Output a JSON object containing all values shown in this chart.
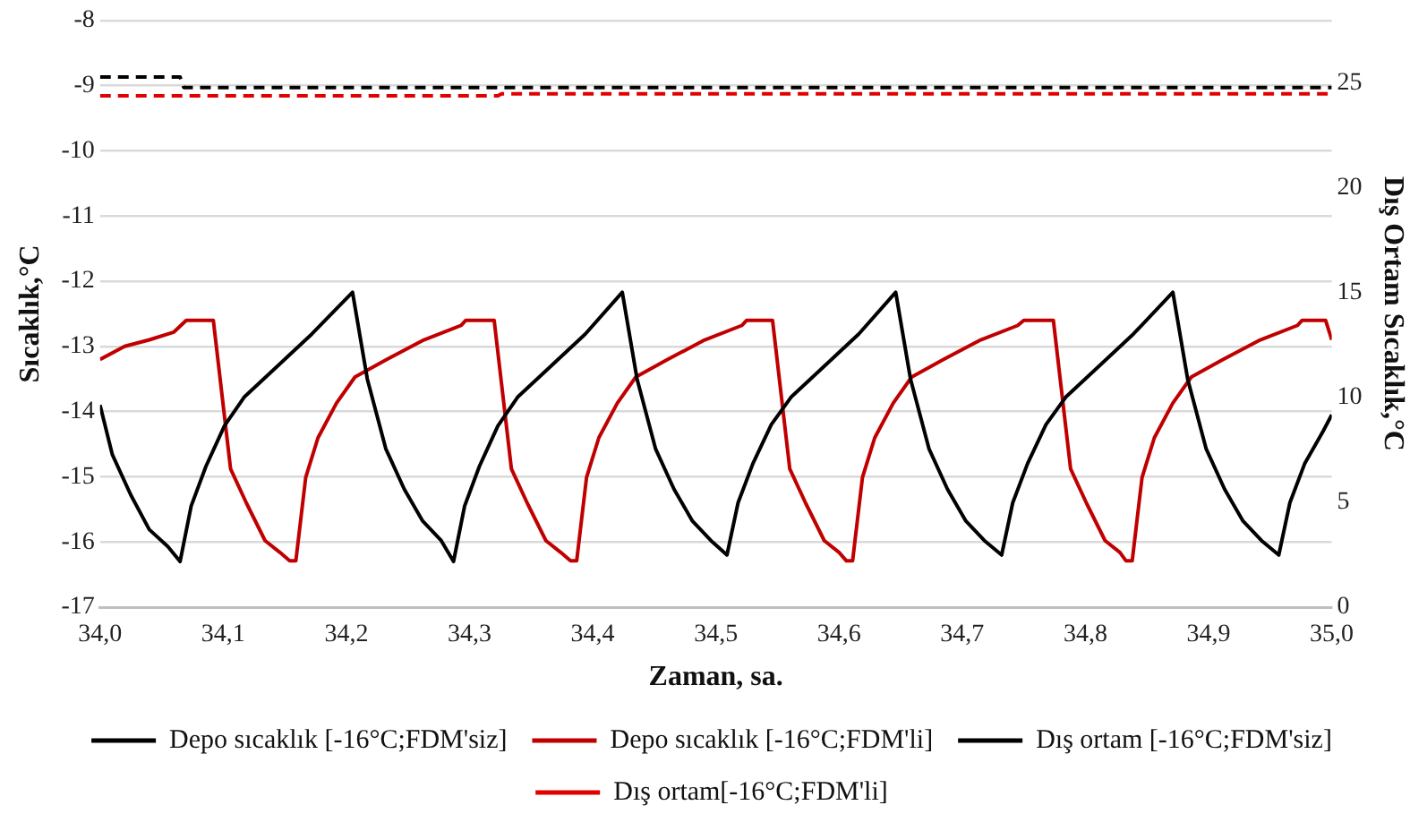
{
  "chart_data": {
    "type": "line",
    "xlabel": "Zaman, sa.",
    "ylabel": "Sıcaklık,°C",
    "y2label": "Dış Ortam Sıcaklık,°C",
    "xlim": [
      34,
      35
    ],
    "xticks": [
      {
        "value": 34,
        "label": "34,0"
      },
      {
        "value": 34.1,
        "label": "34,1"
      },
      {
        "value": 34.2,
        "label": "34,2"
      },
      {
        "value": 34.3,
        "label": "34,3"
      },
      {
        "value": 34.4,
        "label": "34,4"
      },
      {
        "value": 34.5,
        "label": "34,5"
      },
      {
        "value": 34.6,
        "label": "34,6"
      },
      {
        "value": 34.7,
        "label": "34,7"
      },
      {
        "value": 34.8,
        "label": "34,8"
      },
      {
        "value": 34.9,
        "label": "34,9"
      },
      {
        "value": 35,
        "label": "35,0"
      }
    ],
    "ylim": [
      -17,
      -8
    ],
    "yticks": [
      -17,
      -16,
      -15,
      -14,
      -13,
      -12,
      -11,
      -10,
      -9,
      -8
    ],
    "y2lim": [
      0,
      28
    ],
    "y2ticks": [
      0,
      5,
      10,
      15,
      20,
      25
    ],
    "grid": "y",
    "legend": "bottom",
    "marker": "none",
    "series": [
      {
        "name": "Depo sıcaklık [-16°C;FDM'siz]",
        "color": "#000000",
        "line_style": "solid",
        "x": [
          34.0,
          34.01,
          34.025,
          34.04,
          34.055,
          34.065,
          34.074,
          34.086,
          34.101,
          34.117,
          34.142,
          34.172,
          34.205,
          34.217,
          34.232,
          34.247,
          34.262,
          34.277,
          34.287,
          34.296,
          34.308,
          34.323,
          34.339,
          34.364,
          34.394,
          34.424,
          34.436,
          34.451,
          34.466,
          34.481,
          34.496,
          34.509,
          34.518,
          34.53,
          34.545,
          34.561,
          34.586,
          34.616,
          34.646,
          34.658,
          34.673,
          34.688,
          34.703,
          34.718,
          34.732,
          34.741,
          34.753,
          34.768,
          34.784,
          34.809,
          34.839,
          34.871,
          34.883,
          34.898,
          34.913,
          34.928,
          34.943,
          34.957,
          34.966,
          34.978,
          34.993,
          35.0
        ],
        "values": [
          -13.9,
          -14.66,
          -15.28,
          -15.81,
          -16.07,
          -16.3,
          -15.45,
          -14.84,
          -14.22,
          -13.78,
          -13.34,
          -12.81,
          -12.17,
          -13.5,
          -14.57,
          -15.19,
          -15.68,
          -15.98,
          -16.3,
          -15.45,
          -14.84,
          -14.22,
          -13.78,
          -13.34,
          -12.81,
          -12.17,
          -13.5,
          -14.57,
          -15.19,
          -15.68,
          -15.98,
          -16.2,
          -15.4,
          -14.8,
          -14.2,
          -13.78,
          -13.34,
          -12.81,
          -12.17,
          -13.5,
          -14.57,
          -15.19,
          -15.68,
          -15.98,
          -16.2,
          -15.4,
          -14.8,
          -14.2,
          -13.78,
          -13.34,
          -12.81,
          -12.17,
          -13.5,
          -14.57,
          -15.19,
          -15.68,
          -15.98,
          -16.2,
          -15.4,
          -14.8,
          -14.3,
          -14.05
        ]
      },
      {
        "name": "Depo sıcaklık [-16°C;FDM'li]",
        "color": "#c00000",
        "line_style": "solid",
        "x": [
          34.0,
          34.02,
          34.04,
          34.06,
          34.07,
          34.092,
          34.106,
          34.119,
          34.134,
          34.146,
          34.154,
          34.159,
          34.167,
          34.177,
          34.192,
          34.207,
          34.233,
          34.263,
          34.293,
          34.297,
          34.32,
          34.334,
          34.347,
          34.362,
          34.374,
          34.382,
          34.387,
          34.395,
          34.405,
          34.42,
          34.435,
          34.461,
          34.491,
          34.521,
          34.525,
          34.546,
          34.56,
          34.573,
          34.588,
          34.6,
          34.606,
          34.611,
          34.619,
          34.629,
          34.644,
          34.659,
          34.685,
          34.715,
          34.745,
          34.75,
          34.774,
          34.788,
          34.801,
          34.816,
          34.828,
          34.833,
          34.838,
          34.846,
          34.856,
          34.871,
          34.886,
          34.912,
          34.942,
          34.972,
          34.976,
          34.995,
          35.0
        ],
        "values": [
          -13.2,
          -13.0,
          -12.9,
          -12.78,
          -12.6,
          -12.6,
          -14.88,
          -15.41,
          -15.98,
          -16.16,
          -16.29,
          -16.29,
          -15.01,
          -14.4,
          -13.87,
          -13.47,
          -13.2,
          -12.9,
          -12.68,
          -12.6,
          -12.6,
          -14.88,
          -15.41,
          -15.98,
          -16.16,
          -16.29,
          -16.29,
          -15.01,
          -14.4,
          -13.87,
          -13.47,
          -13.2,
          -12.9,
          -12.68,
          -12.6,
          -12.6,
          -14.88,
          -15.41,
          -15.98,
          -16.16,
          -16.29,
          -16.29,
          -15.01,
          -14.4,
          -13.87,
          -13.47,
          -13.2,
          -12.9,
          -12.68,
          -12.6,
          -12.6,
          -14.88,
          -15.41,
          -15.98,
          -16.16,
          -16.29,
          -16.29,
          -15.01,
          -14.4,
          -13.87,
          -13.47,
          -13.2,
          -12.9,
          -12.68,
          -12.6,
          -12.6,
          -12.9
        ]
      },
      {
        "name": "Dış ortam [-16°C;FDM'siz]",
        "color": "#000000",
        "line_style": "dashed",
        "axis": "y2",
        "x": [
          34.0,
          34.065,
          34.068,
          35.0
        ],
        "values": [
          25.3,
          25.3,
          24.8,
          24.8
        ]
      },
      {
        "name": "Dış ortam[-16°C;FDM'li]",
        "color": "#e00000",
        "line_style": "dashed",
        "axis": "y2",
        "x": [
          34.0,
          34.323,
          34.326,
          35.0
        ],
        "values": [
          24.4,
          24.4,
          24.5,
          24.5
        ]
      }
    ]
  }
}
